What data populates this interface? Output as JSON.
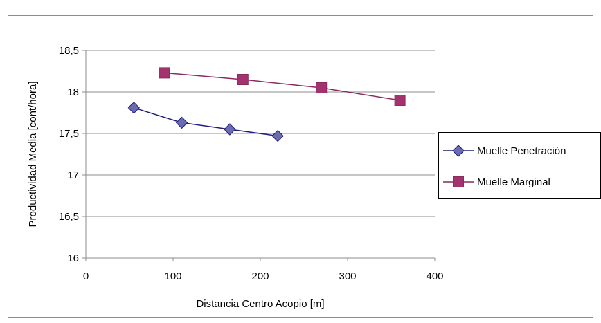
{
  "chart_data": {
    "type": "line",
    "title": "",
    "xlabel": "Distancia Centro Acopio [m]",
    "ylabel": "Productividad Media [cont/hora]",
    "xlim": [
      0,
      400
    ],
    "ylim": [
      16,
      18.5
    ],
    "x_ticks": [
      0,
      100,
      200,
      300,
      400
    ],
    "x_tick_labels": [
      "0",
      "100",
      "200",
      "300",
      "400"
    ],
    "y_ticks": [
      16,
      16.5,
      17,
      17.5,
      18,
      18.5
    ],
    "y_tick_labels": [
      "16",
      "16,5",
      "17",
      "17,5",
      "18",
      "18,5"
    ],
    "grid": "horizontal",
    "legend_position": "right",
    "series": [
      {
        "name": "Muelle Penetración",
        "marker": "diamond",
        "color": "#1F1F7A",
        "marker_color": "#6B6BB0",
        "x": [
          55,
          110,
          165,
          220
        ],
        "y": [
          17.81,
          17.63,
          17.55,
          17.47
        ]
      },
      {
        "name": "Muelle Marginal",
        "marker": "square",
        "color": "#8B2A5E",
        "marker_color": "#A3336F",
        "x": [
          90,
          180,
          270,
          360
        ],
        "y": [
          18.23,
          18.15,
          18.05,
          17.9
        ]
      }
    ]
  }
}
